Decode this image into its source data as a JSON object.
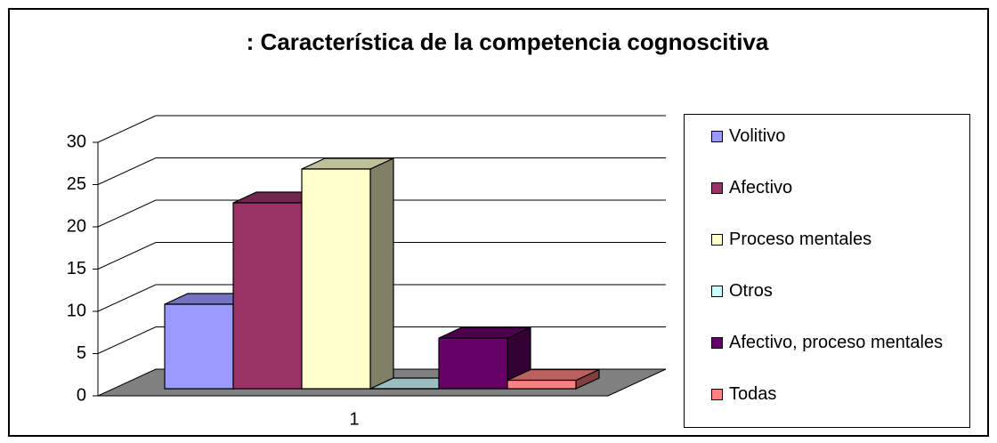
{
  "chart_data": {
    "type": "bar3d",
    "title": ": Característica de la competencia cognoscitiva",
    "categories": [
      "1"
    ],
    "series": [
      {
        "name": "Volitivo",
        "color": "#9999ff",
        "values": [
          10
        ]
      },
      {
        "name": "Afectivo",
        "color": "#993366",
        "values": [
          22
        ]
      },
      {
        "name": "Proceso mentales",
        "color": "#ffffcc",
        "values": [
          26
        ]
      },
      {
        "name": "Otros",
        "color": "#ccffff",
        "values": [
          0
        ]
      },
      {
        "name": "Afectivo, proceso mentales",
        "color": "#660066",
        "values": [
          6
        ]
      },
      {
        "name": "Todas",
        "color": "#ff8080",
        "values": [
          1
        ]
      }
    ],
    "ylim": [
      0,
      30
    ],
    "yticks": [
      0,
      5,
      10,
      15,
      20,
      25,
      30
    ],
    "grid": true,
    "legend": "right"
  }
}
